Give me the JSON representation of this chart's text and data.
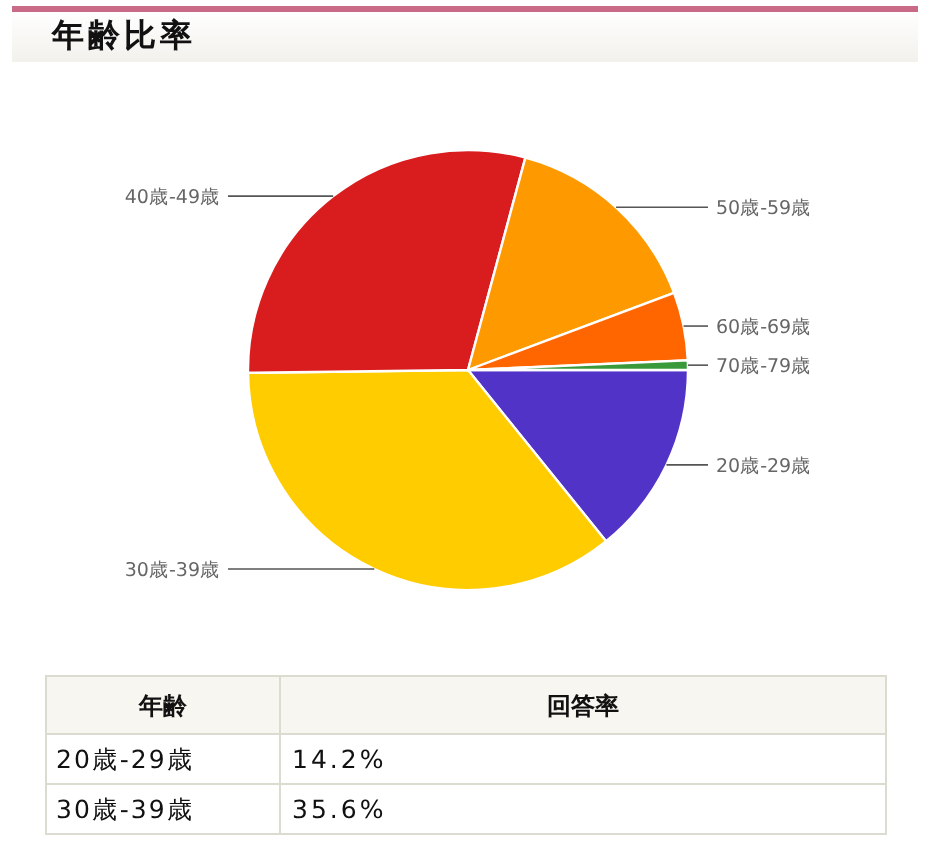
{
  "chart_data": {
    "type": "pie",
    "title": "年齢比率",
    "categories": [
      "20歳-29歳",
      "30歳-39歳",
      "40歳-49歳",
      "50歳-59歳",
      "60歳-69歳",
      "70歳-79歳"
    ],
    "values": [
      14.2,
      35.6,
      29.4,
      15.1,
      5.0,
      0.7
    ],
    "colors": [
      "#5233c8",
      "#ffcc00",
      "#d91c1e",
      "#ff9900",
      "#ff6600",
      "#3a9a3a"
    ],
    "annotations": [
      "年齢",
      "回答率",
      "14.2%",
      "35.6%"
    ],
    "legend": false
  }
}
